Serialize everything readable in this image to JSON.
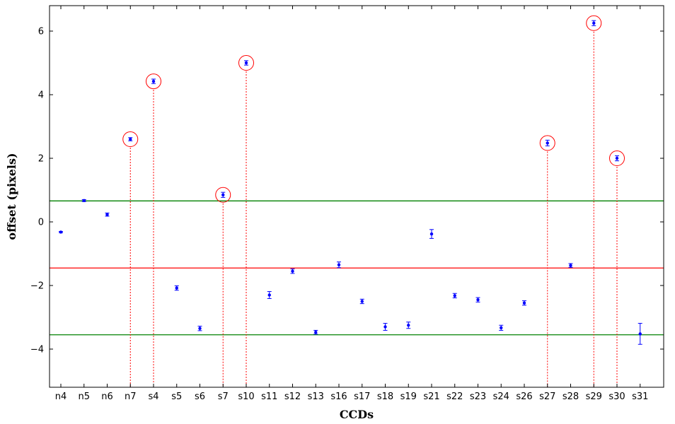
{
  "chart_data": {
    "type": "scatter",
    "xlabel": "CCDs",
    "ylabel": "offset (pixels)",
    "categories": [
      "n4",
      "n5",
      "n6",
      "n7",
      "s4",
      "s5",
      "s6",
      "s7",
      "s10",
      "s11",
      "s12",
      "s13",
      "s16",
      "s17",
      "s18",
      "s19",
      "s21",
      "s22",
      "s23",
      "s24",
      "s26",
      "s27",
      "s28",
      "s29",
      "s30",
      "s31"
    ],
    "values": [
      -0.32,
      0.67,
      0.23,
      2.6,
      4.42,
      -2.08,
      -3.35,
      0.85,
      5.0,
      -2.3,
      -1.55,
      -3.47,
      -1.35,
      -2.5,
      -3.3,
      -3.25,
      -0.38,
      -2.32,
      -2.45,
      -3.33,
      -2.55,
      2.48,
      -1.37,
      6.25,
      2.0,
      -3.52
    ],
    "errors": [
      0.02,
      0.03,
      0.05,
      0.05,
      0.07,
      0.07,
      0.07,
      0.08,
      0.07,
      0.11,
      0.07,
      0.06,
      0.09,
      0.07,
      0.11,
      0.1,
      0.14,
      0.07,
      0.07,
      0.08,
      0.07,
      0.09,
      0.06,
      0.08,
      0.08,
      0.33
    ],
    "outliers": [
      "n7",
      "s4",
      "s7",
      "s10",
      "s27",
      "s29",
      "s30"
    ],
    "mean_line": -1.45,
    "bound_lines": [
      0.66,
      -3.55
    ],
    "ylim": [
      -5.2,
      6.8
    ],
    "yticks": [
      -4,
      -2,
      0,
      2,
      4,
      6
    ],
    "grid": false,
    "colors": {
      "points": "#0000ff",
      "mean_line": "#ff0000",
      "bound_lines": "#008000",
      "outlier_markers": "#ff0000"
    }
  }
}
